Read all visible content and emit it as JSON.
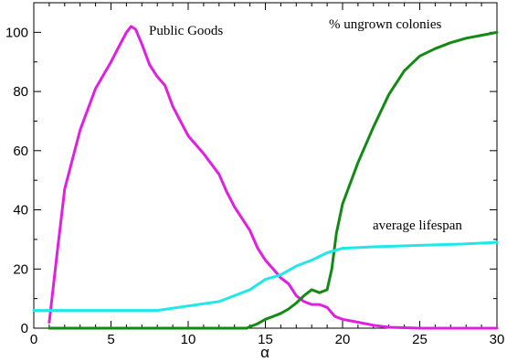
{
  "chart_data": {
    "type": "line",
    "xlabel": "α",
    "ylabel": "",
    "xlim": [
      0,
      30
    ],
    "ylim": [
      0,
      110
    ],
    "x_ticks": [
      0,
      5,
      10,
      15,
      20,
      25,
      30
    ],
    "y_ticks": [
      0,
      20,
      40,
      60,
      80,
      100
    ],
    "grid": false,
    "series": [
      {
        "name": "Public Goods",
        "color": "#e020e0",
        "x": [
          1,
          1.5,
          2,
          3,
          4,
          5,
          5.5,
          6,
          6.3,
          6.6,
          7,
          7.5,
          8,
          8.5,
          9,
          9.5,
          10,
          11,
          12,
          12.5,
          13,
          14,
          14.5,
          15,
          15.5,
          16,
          16.5,
          17,
          17.5,
          18,
          18.5,
          19,
          19.5,
          20,
          21,
          22,
          23,
          25,
          30
        ],
        "y": [
          2,
          25,
          47,
          67,
          81,
          90,
          95,
          100,
          102,
          101,
          96,
          89,
          85,
          82,
          75,
          70,
          65,
          59,
          52,
          46,
          41,
          33,
          27,
          23,
          20,
          17,
          15,
          11,
          9,
          8,
          8,
          7,
          4,
          3,
          2,
          1,
          0.3,
          0,
          0
        ]
      },
      {
        "name": "% ungrown colonies",
        "color": "#138a13",
        "x": [
          1,
          13.8,
          14,
          14.5,
          15,
          15.5,
          16,
          16.5,
          17,
          17.5,
          18,
          18.5,
          19,
          19.3,
          19.6,
          20,
          21,
          22,
          23,
          24,
          25,
          26,
          27,
          28,
          29,
          30
        ],
        "y": [
          0,
          0,
          0.5,
          1.5,
          3,
          4,
          5,
          6.5,
          8.5,
          11,
          13,
          12,
          13,
          20,
          32,
          42,
          56,
          68,
          79,
          87,
          92,
          94.5,
          96.5,
          98,
          99,
          100
        ]
      },
      {
        "name": "average lifespan",
        "color": "#20e8e8",
        "x": [
          0,
          2,
          4,
          6,
          8,
          10,
          12,
          14,
          15,
          16,
          17,
          18,
          19,
          20,
          22,
          25,
          28,
          30
        ],
        "y": [
          6,
          6,
          6,
          6,
          6,
          7.5,
          9,
          13,
          16.5,
          18,
          21,
          23,
          25.5,
          27,
          27.5,
          28,
          28.5,
          29
        ]
      }
    ],
    "annotations": [
      {
        "text": "Public Goods",
        "series": 0
      },
      {
        "text": "% ungrown colonies",
        "series": 1
      },
      {
        "text": "average lifespan",
        "series": 2
      }
    ]
  }
}
